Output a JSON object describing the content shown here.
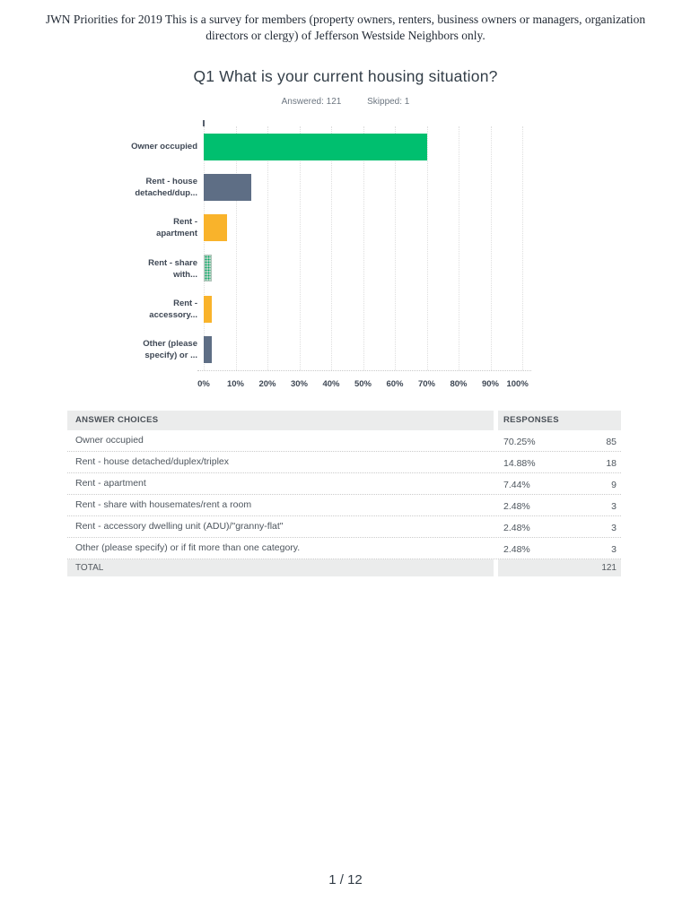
{
  "doc": {
    "header_text": "JWN Priorities for 2019 This is a survey for members (property owners, renters, business owners or managers, organization directors or clergy) of Jefferson Westside Neighbors only.",
    "page_indicator": "1 / 12"
  },
  "question": {
    "title": "Q1 What is your current housing situation?",
    "answered": "Answered: 121",
    "skipped": "Skipped: 1"
  },
  "chart_data": {
    "type": "bar",
    "orientation": "horizontal",
    "title": "Q1 What is your current housing situation?",
    "categories": [
      "Owner occupied",
      "Rent - house detached/dup...",
      "Rent - apartment",
      "Rent - share with...",
      "Rent - accessory...",
      "Other (please specify) or ..."
    ],
    "category_lines": [
      [
        "Owner occupied"
      ],
      [
        "Rent - house",
        "detached/dup..."
      ],
      [
        "Rent -",
        "apartment"
      ],
      [
        "Rent - share",
        "with..."
      ],
      [
        "Rent -",
        "accessory..."
      ],
      [
        "Other (please",
        "specify) or ..."
      ]
    ],
    "values": [
      70.25,
      14.88,
      7.44,
      2.48,
      2.48,
      2.48
    ],
    "bar_styles": [
      "green",
      "slate",
      "amber",
      "green-dotted",
      "amber",
      "slate"
    ],
    "x_ticks": [
      "0%",
      "10%",
      "20%",
      "30%",
      "40%",
      "50%",
      "60%",
      "70%",
      "80%",
      "90%",
      "100%"
    ],
    "xlim": [
      0,
      100
    ],
    "grid": "vertical-dotted",
    "legend": "none",
    "colors": {
      "green": "#00BF6F",
      "slate": "#5E6E85",
      "amber": "#F9B32B",
      "dotted_pattern_bg": "#C3D6CB",
      "gridline": "#DEDEDE"
    }
  },
  "table": {
    "col_answer": "ANSWER CHOICES",
    "col_responses": "RESPONSES",
    "rows": [
      {
        "choice": "Owner occupied",
        "percent": "70.25%",
        "count": "85"
      },
      {
        "choice": "Rent - house detached/duplex/triplex",
        "percent": "14.88%",
        "count": "18"
      },
      {
        "choice": "Rent - apartment",
        "percent": "7.44%",
        "count": "9"
      },
      {
        "choice": "Rent - share with housemates/rent a room",
        "percent": "2.48%",
        "count": "3"
      },
      {
        "choice": "Rent - accessory dwelling unit (ADU)/\"granny-flat\"",
        "percent": "2.48%",
        "count": "3"
      },
      {
        "choice": "Other (please specify) or if fit more than one category.",
        "percent": "2.48%",
        "count": "3"
      }
    ],
    "total_label": "TOTAL",
    "total_count": "121"
  }
}
